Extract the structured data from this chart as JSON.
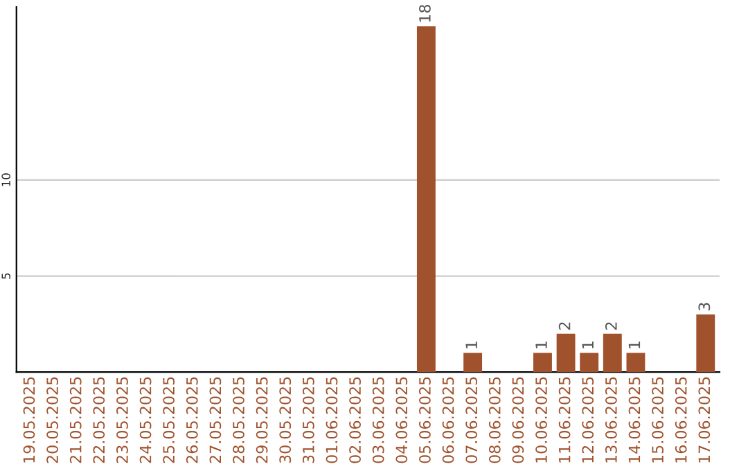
{
  "chart_data": {
    "type": "bar",
    "categories": [
      "19.05.2025",
      "20.05.2025",
      "21.05.2025",
      "22.05.2025",
      "23.05.2025",
      "24.05.2025",
      "25.05.2025",
      "26.05.2025",
      "27.05.2025",
      "28.05.2025",
      "29.05.2025",
      "30.05.2025",
      "31.05.2025",
      "01.06.2025",
      "02.06.2025",
      "03.06.2025",
      "04.06.2025",
      "05.06.2025",
      "06.06.2025",
      "07.06.2025",
      "08.06.2025",
      "09.06.2025",
      "10.06.2025",
      "11.06.2025",
      "12.06.2025",
      "13.06.2025",
      "14.06.2025",
      "15.06.2025",
      "16.06.2025",
      "17.06.2025"
    ],
    "values": [
      0,
      0,
      0,
      0,
      0,
      0,
      0,
      0,
      0,
      0,
      0,
      0,
      0,
      0,
      0,
      0,
      0,
      18,
      0,
      1,
      0,
      0,
      1,
      2,
      1,
      2,
      1,
      0,
      0,
      3
    ],
    "value_labels": [
      null,
      null,
      null,
      null,
      null,
      null,
      null,
      null,
      null,
      null,
      null,
      null,
      null,
      null,
      null,
      null,
      null,
      "18",
      null,
      "1",
      null,
      null,
      "1",
      "2",
      "1",
      "2",
      "1",
      null,
      null,
      "3"
    ],
    "color": "#a0522d",
    "ylim": [
      0,
      19
    ],
    "yticks": [
      5,
      10
    ],
    "grid": "y"
  }
}
